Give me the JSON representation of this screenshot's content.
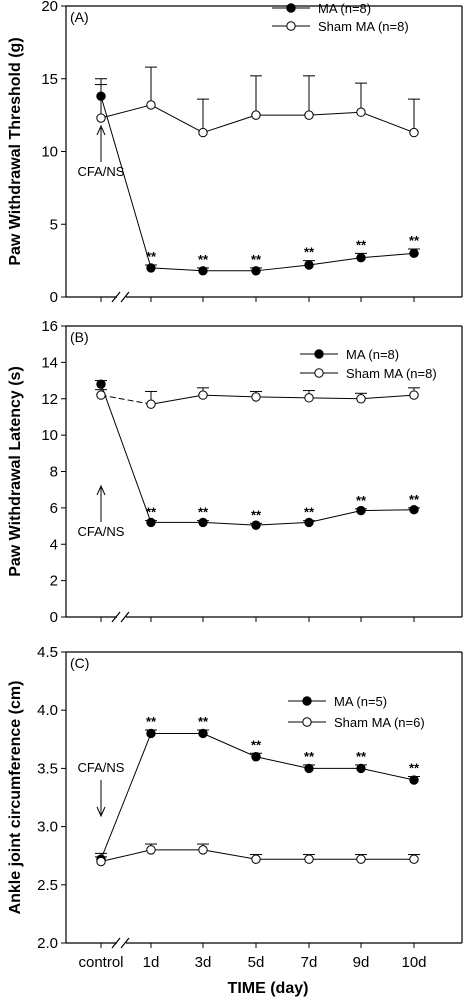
{
  "chart_data": [
    {
      "type": "line",
      "panel_label": "(A)",
      "ylabel": "Paw Withdrawal Threshold (g)",
      "ylim": [
        0,
        20
      ],
      "yticks": [
        0,
        5,
        10,
        15,
        20
      ],
      "categories": [
        "control",
        "1d",
        "3d",
        "5d",
        "7d",
        "9d",
        "10d"
      ],
      "series": [
        {
          "name": "MA (n=8)",
          "marker": "filled",
          "values": [
            13.8,
            2.0,
            1.8,
            1.8,
            2.2,
            2.7,
            3.0
          ],
          "errors": [
            1.2,
            0.2,
            0.2,
            0.2,
            0.3,
            0.3,
            0.3
          ]
        },
        {
          "name": "Sham MA (n=8)",
          "marker": "open",
          "values": [
            12.3,
            13.2,
            11.3,
            12.5,
            12.5,
            12.7,
            11.3
          ],
          "errors": [
            2.3,
            2.6,
            2.3,
            2.7,
            2.7,
            2.0,
            2.3
          ]
        }
      ],
      "stars": [
        "**",
        "**",
        "**",
        "**",
        "**",
        "**"
      ],
      "annotation": "CFA/NS",
      "legend_position": "top-right"
    },
    {
      "type": "line",
      "panel_label": "(B)",
      "ylabel": "Paw Withdrawal Latency (s)",
      "ylim": [
        0,
        16
      ],
      "yticks": [
        0,
        2,
        4,
        6,
        8,
        10,
        12,
        14,
        16
      ],
      "categories": [
        "control",
        "1d",
        "3d",
        "5d",
        "7d",
        "9d",
        "10d"
      ],
      "series": [
        {
          "name": "MA (n=8)",
          "marker": "filled",
          "values": [
            12.8,
            5.2,
            5.2,
            5.05,
            5.2,
            5.85,
            5.9
          ],
          "errors": [
            0.2,
            0.1,
            0.1,
            0.1,
            0.1,
            0.1,
            0.1
          ]
        },
        {
          "name": "Sham MA (n=8)",
          "marker": "open",
          "values": [
            12.2,
            11.7,
            12.2,
            12.1,
            12.05,
            12.0,
            12.2
          ],
          "errors": [
            0.3,
            0.7,
            0.4,
            0.3,
            0.4,
            0.3,
            0.4
          ]
        }
      ],
      "stars": [
        "**",
        "**",
        "**",
        "**",
        "**",
        "**"
      ],
      "annotation": "CFA/NS",
      "legend_position": "top-right"
    },
    {
      "type": "line",
      "panel_label": "(C)",
      "ylabel": "Ankle joint circumference (cm)",
      "ylim": [
        2.0,
        4.5
      ],
      "yticks": [
        "2.0",
        "2.5",
        "3.0",
        "3.5",
        "4.0",
        "4.5"
      ],
      "categories": [
        "control",
        "1d",
        "3d",
        "5d",
        "7d",
        "9d",
        "10d"
      ],
      "series": [
        {
          "name": "MA (n=5)",
          "marker": "filled",
          "values": [
            2.72,
            3.8,
            3.8,
            3.6,
            3.5,
            3.5,
            3.4
          ],
          "errors": [
            0.05,
            0.03,
            0.03,
            0.03,
            0.03,
            0.03,
            0.03
          ]
        },
        {
          "name": "Sham MA (n=6)",
          "marker": "open",
          "values": [
            2.7,
            2.8,
            2.8,
            2.72,
            2.72,
            2.72,
            2.72
          ],
          "errors": [
            0.04,
            0.05,
            0.05,
            0.04,
            0.04,
            0.04,
            0.04
          ]
        }
      ],
      "stars": [
        "**",
        "**",
        "**",
        "**",
        "**",
        "**"
      ],
      "annotation": "CFA/NS",
      "legend_position": "top-right"
    }
  ],
  "xlabel": "TIME (day)"
}
